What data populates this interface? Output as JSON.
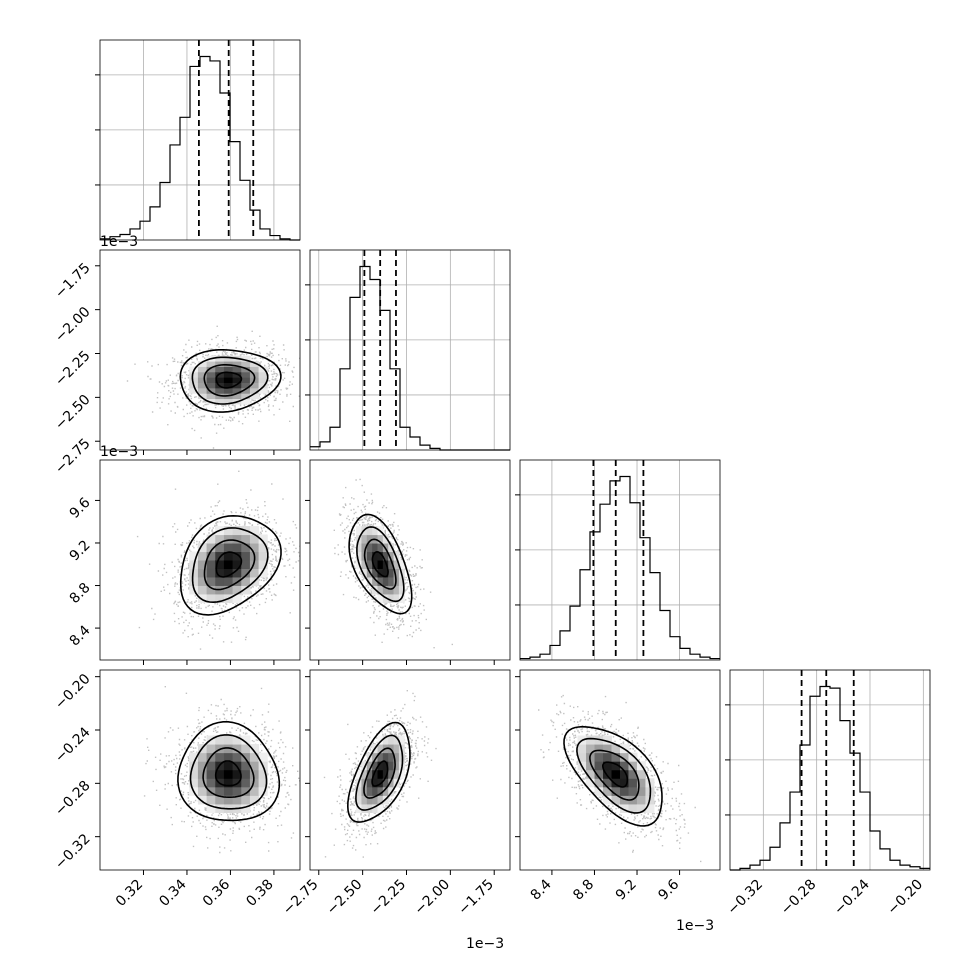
{
  "chart_data": {
    "type": "corner",
    "title": "",
    "grid": true,
    "variables": [
      {
        "ticks": [
          0.32,
          0.34,
          0.36,
          0.38
        ],
        "tick_labels": [
          "0.32",
          "0.34",
          "0.36",
          "0.38"
        ],
        "range": [
          0.3,
          0.392
        ]
      },
      {
        "ticks": [
          -2.75,
          -2.5,
          -2.25,
          -2.0,
          -1.75
        ],
        "tick_labels": [
          "−2.75",
          "−2.50",
          "−2.25",
          "−2.00",
          "−1.75"
        ],
        "range": [
          -2.8,
          -1.66
        ],
        "offset": "1e−3"
      },
      {
        "ticks": [
          8.4,
          8.8,
          9.2,
          9.6
        ],
        "tick_labels": [
          "8.4",
          "8.8",
          "9.2",
          "9.6"
        ],
        "range": [
          8.1,
          9.98
        ],
        "offset": "1e−3"
      },
      {
        "ticks": [
          -0.32,
          -0.28,
          -0.24,
          -0.2
        ],
        "tick_labels": [
          "−0.32",
          "−0.28",
          "−0.24",
          "−0.20"
        ],
        "range": [
          -0.345,
          -0.195
        ]
      }
    ],
    "histograms": [
      {
        "edges": [
          0.3,
          0.392
        ],
        "quantiles": [
          0.3455,
          0.3592,
          0.3705
        ],
        "counts": [
          1,
          3,
          5,
          10,
          17,
          30,
          52,
          86,
          111,
          157,
          166,
          162,
          133,
          89,
          54,
          27,
          10,
          4,
          1,
          0
        ]
      },
      {
        "edges": [
          -2.8,
          -1.66
        ],
        "quantiles": [
          -2.49,
          -2.4,
          -2.31
        ],
        "counts": [
          2,
          5,
          14,
          50,
          94,
          113,
          105,
          86,
          50,
          14,
          8,
          3,
          1,
          0,
          0,
          0,
          0,
          0,
          0,
          0
        ]
      },
      {
        "edges": [
          8.1,
          9.98
        ],
        "quantiles": [
          8.79,
          9.0,
          9.26
        ],
        "counts": [
          1,
          2,
          4,
          10,
          20,
          37,
          62,
          88,
          107,
          123,
          126,
          108,
          84,
          60,
          34,
          16,
          8,
          4,
          2,
          1
        ]
      },
      {
        "edges": [
          -0.345,
          -0.195
        ],
        "quantiles": [
          -0.2913,
          -0.2728,
          -0.2522
        ],
        "counts": [
          0,
          1,
          3,
          6,
          14,
          29,
          48,
          77,
          107,
          113,
          112,
          92,
          72,
          48,
          24,
          13,
          6,
          3,
          2,
          1
        ]
      }
    ],
    "correlations": {
      "1-0": 0.05,
      "2-0": 0.28,
      "2-1": -0.52,
      "3-0": -0.05,
      "3-1": 0.55,
      "3-2": -0.58
    },
    "centers": [
      0.359,
      -2.4,
      9.0,
      -0.273
    ],
    "sigmas": [
      0.0115,
      0.088,
      0.23,
      0.0185
    ]
  }
}
